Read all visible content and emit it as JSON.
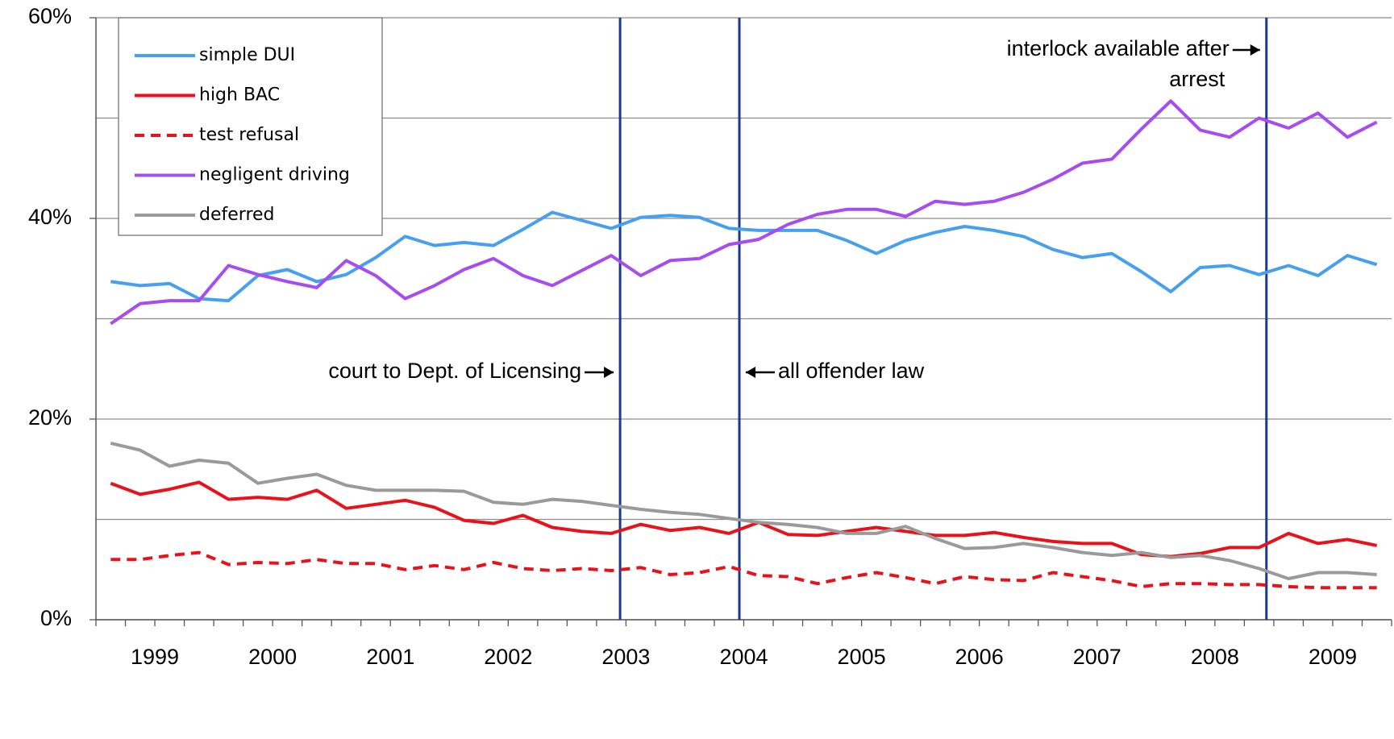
{
  "chart_data": {
    "type": "line",
    "categories": [
      null,
      "1999",
      null,
      null,
      null,
      "2000",
      null,
      null,
      null,
      "2001",
      null,
      null,
      null,
      "2002",
      null,
      null,
      null,
      "2003",
      null,
      null,
      null,
      "2004",
      null,
      null,
      null,
      "2005",
      null,
      null,
      null,
      "2006",
      null,
      null,
      null,
      "2007",
      null,
      null,
      null,
      "2008",
      null,
      null,
      null,
      "2009",
      null,
      null
    ],
    "series": [
      {
        "name": "simple DUI",
        "color": "#46a0ef",
        "dashed": false,
        "values": [
          33.7,
          33.3,
          33.5,
          32.0,
          31.8,
          34.3,
          34.9,
          33.7,
          34.4,
          36.1,
          38.2,
          37.3,
          37.6,
          37.3,
          38.9,
          40.6,
          39.8,
          39.0,
          40.1,
          40.3,
          40.1,
          39.0,
          38.8,
          38.8,
          38.8,
          37.8,
          36.5,
          37.8,
          38.6,
          39.2,
          38.8,
          38.2,
          36.9,
          36.1,
          36.5,
          34.7,
          32.7,
          35.1,
          35.3,
          34.4,
          35.3,
          34.3,
          36.3,
          35.4
        ]
      },
      {
        "name": "high BAC",
        "color": "#e8121b",
        "dashed": false,
        "values": [
          13.6,
          12.5,
          13.0,
          13.7,
          12.0,
          12.2,
          12.0,
          12.9,
          11.1,
          11.5,
          11.9,
          11.2,
          9.9,
          9.6,
          10.4,
          9.2,
          8.8,
          8.6,
          9.5,
          8.9,
          9.2,
          8.6,
          9.7,
          8.5,
          8.4,
          8.8,
          9.2,
          8.8,
          8.4,
          8.4,
          8.7,
          8.2,
          7.8,
          7.6,
          7.6,
          6.5,
          6.3,
          6.6,
          7.2,
          7.2,
          8.6,
          7.6,
          8.0,
          7.4
        ]
      },
      {
        "name": "test refusal",
        "color": "#e8121b",
        "dashed": true,
        "values": [
          6.0,
          6.0,
          6.4,
          6.7,
          5.5,
          5.7,
          5.6,
          6.0,
          5.6,
          5.6,
          5.0,
          5.4,
          5.0,
          5.7,
          5.1,
          4.9,
          5.1,
          4.9,
          5.2,
          4.5,
          4.7,
          5.3,
          4.4,
          4.3,
          3.6,
          4.2,
          4.7,
          4.2,
          3.6,
          4.3,
          4.0,
          3.9,
          4.7,
          4.3,
          3.9,
          3.3,
          3.6,
          3.6,
          3.5,
          3.5,
          3.3,
          3.2,
          3.2,
          3.2
        ]
      },
      {
        "name": "negligent driving",
        "color": "#a64cf0",
        "dashed": false,
        "values": [
          29.5,
          31.5,
          31.8,
          31.8,
          35.3,
          34.4,
          33.7,
          33.1,
          35.8,
          34.3,
          32.0,
          33.3,
          34.9,
          36.0,
          34.3,
          33.3,
          34.8,
          36.3,
          34.3,
          35.8,
          36.0,
          37.4,
          37.9,
          39.4,
          40.4,
          40.9,
          40.9,
          40.2,
          41.7,
          41.4,
          41.7,
          42.6,
          43.9,
          45.5,
          45.9,
          48.9,
          51.7,
          48.8,
          48.1,
          50.0,
          49.0,
          50.5,
          48.1,
          49.6
        ]
      },
      {
        "name": "deferred",
        "color": "#9a9a9a",
        "dashed": false,
        "values": [
          17.6,
          16.9,
          15.3,
          15.9,
          15.6,
          13.6,
          14.1,
          14.5,
          13.4,
          12.9,
          12.9,
          12.9,
          12.8,
          11.7,
          11.5,
          12.0,
          11.8,
          11.4,
          11.0,
          10.7,
          10.5,
          10.1,
          9.7,
          9.5,
          9.2,
          8.6,
          8.6,
          9.3,
          8.1,
          7.1,
          7.2,
          7.6,
          7.2,
          6.7,
          6.4,
          6.7,
          6.2,
          6.4,
          5.9,
          5.1,
          4.1,
          4.7,
          4.7,
          4.5
        ]
      }
    ],
    "ylim": [
      0,
      60
    ],
    "yticks": [
      {
        "value": 0,
        "label": "0%"
      },
      {
        "value": 20,
        "label": "20%"
      },
      {
        "value": 40,
        "label": "40%"
      },
      {
        "value": 60,
        "label": "60%"
      }
    ],
    "minor_yticks": [
      10,
      30,
      50
    ],
    "grid": true,
    "legend": "upper left",
    "events": [
      {
        "x": 17.8,
        "label_lines": [
          "court to Dept. of Licensing"
        ],
        "side": "left",
        "color": "#1a3a8c"
      },
      {
        "x": 21.85,
        "label_lines": [
          "all offender law"
        ],
        "side": "right",
        "color": "#1a3a8c"
      },
      {
        "x": 39.75,
        "label_lines": [
          "interlock available after",
          "arrest"
        ],
        "side": "left-top",
        "color": "#1a3a8c"
      }
    ]
  }
}
